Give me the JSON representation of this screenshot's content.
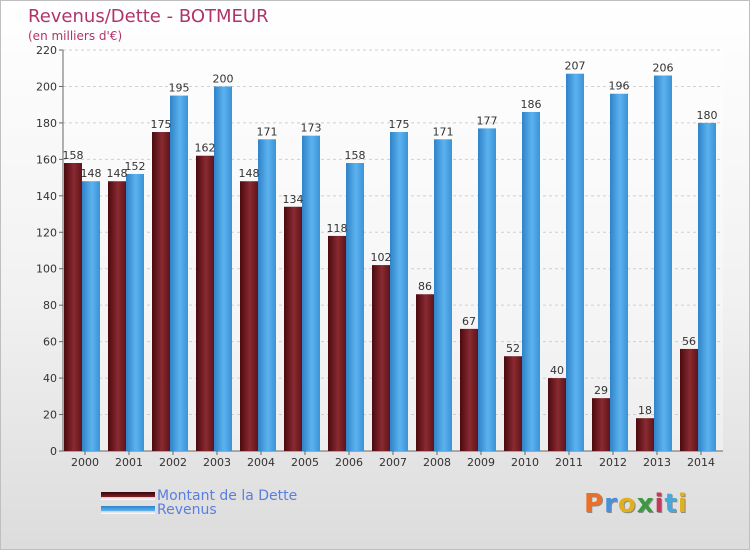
{
  "header": {
    "title": "Revenus/Dette - BOTMEUR",
    "subtitle": "(en milliers d'€)"
  },
  "colors": {
    "debt": "#7a1f25",
    "revenue": "#3f9fe0",
    "title": "#b0336b",
    "legend_text": "#5a7ee0"
  },
  "legend": [
    {
      "label": "Montant de la Dette",
      "color": "#7a1f25"
    },
    {
      "label": "Revenus",
      "color": "#3f9fe0"
    }
  ],
  "logo": {
    "text": "Proxiti"
  },
  "chart_data": {
    "type": "bar",
    "categories": [
      "2000",
      "2001",
      "2002",
      "2003",
      "2004",
      "2005",
      "2006",
      "2007",
      "2008",
      "2009",
      "2010",
      "2011",
      "2012",
      "2013",
      "2014"
    ],
    "series": [
      {
        "name": "Montant de la Dette",
        "values": [
          158,
          148,
          175,
          162,
          148,
          134,
          118,
          102,
          86,
          67,
          52,
          40,
          29,
          18,
          56
        ]
      },
      {
        "name": "Revenus",
        "values": [
          148,
          152,
          195,
          200,
          171,
          173,
          158,
          175,
          171,
          177,
          186,
          207,
          196,
          206,
          180
        ]
      }
    ],
    "ylim": [
      0,
      220
    ],
    "yticks": [
      0,
      20,
      40,
      60,
      80,
      100,
      120,
      140,
      160,
      180,
      200,
      220
    ],
    "grid": true,
    "legend_position": "bottom-left"
  }
}
